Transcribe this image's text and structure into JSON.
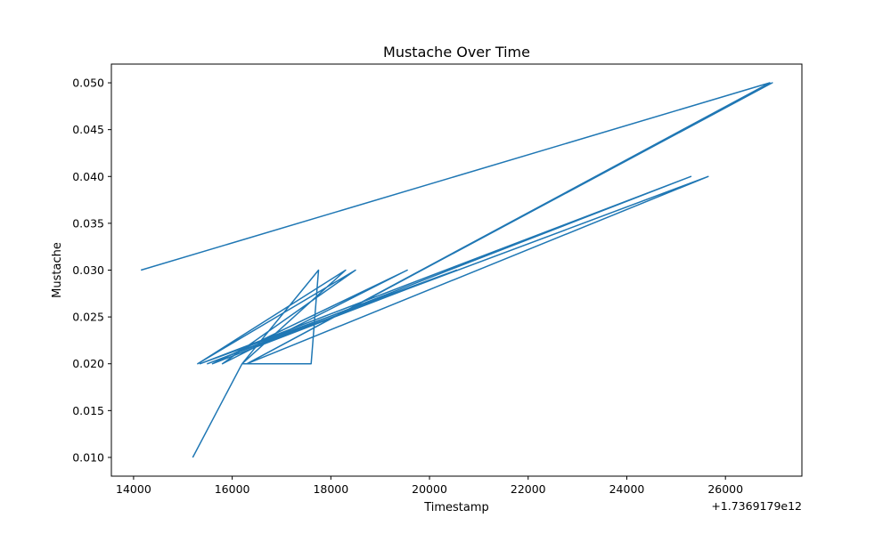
{
  "chart_data": {
    "type": "line",
    "title": "Mustache Over Time",
    "xlabel": "Timestamp",
    "ylabel": "Mustache",
    "x_offset_label": "+1.7369179e12",
    "xlim": [
      13550,
      27550
    ],
    "ylim": [
      0.008,
      0.052
    ],
    "xticks": [
      14000,
      16000,
      18000,
      20000,
      22000,
      24000,
      26000
    ],
    "xtick_labels": [
      "14000",
      "16000",
      "18000",
      "20000",
      "22000",
      "24000",
      "26000"
    ],
    "yticks": [
      0.01,
      0.015,
      0.02,
      0.025,
      0.03,
      0.035,
      0.04,
      0.045,
      0.05
    ],
    "ytick_labels": [
      "0.010",
      "0.015",
      "0.020",
      "0.025",
      "0.030",
      "0.035",
      "0.040",
      "0.045",
      "0.050"
    ],
    "grid": false,
    "line_color": "#1f77b4",
    "series": [
      {
        "x": [
          14150,
          26900,
          16300,
          26950,
          16300,
          25650,
          15500,
          25300,
          15350,
          20550,
          15600,
          19550,
          15800,
          18500,
          15300,
          18300,
          16200,
          17750,
          17600,
          16200,
          15200
        ],
        "y": [
          0.03,
          0.05,
          0.02,
          0.05,
          0.02,
          0.04,
          0.02,
          0.04,
          0.02,
          0.03,
          0.02,
          0.03,
          0.02,
          0.03,
          0.02,
          0.03,
          0.02,
          0.03,
          0.02,
          0.02,
          0.01
        ]
      }
    ]
  }
}
